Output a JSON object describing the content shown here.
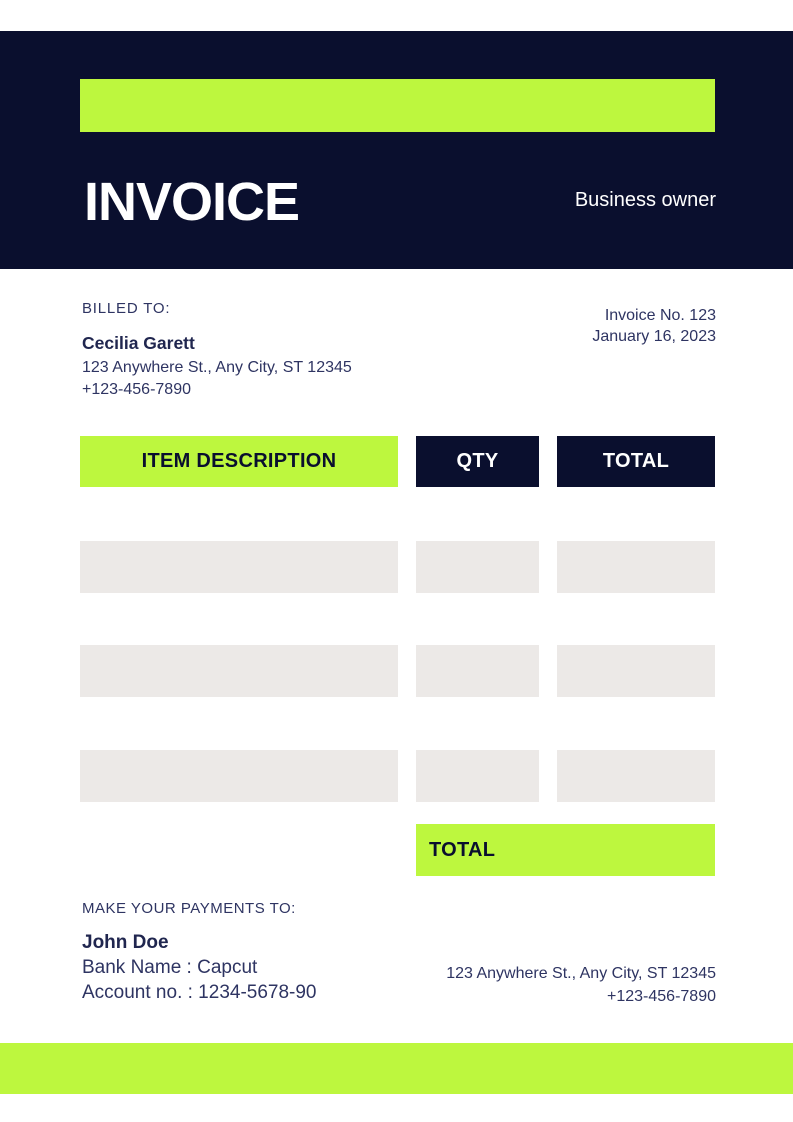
{
  "colors": {
    "navy": "#0a0f2e",
    "lime": "#bdf73e",
    "row_gray": "#ece9e7",
    "text": "#2e3462",
    "bold_text": "#20264f"
  },
  "header": {
    "title": "INVOICE",
    "owner": "Business owner"
  },
  "billing": {
    "label": "BILLED TO:",
    "name": "Cecilia Garett",
    "address": "123 Anywhere St., Any City, ST 12345",
    "phone": "+123-456-7890"
  },
  "meta": {
    "invoice_no": "Invoice No. 123",
    "date": "January 16, 2023"
  },
  "table": {
    "headers": [
      "ITEM DESCRIPTION",
      "QTY",
      "TOTAL"
    ],
    "rows": [
      [
        "",
        "",
        ""
      ],
      [
        "",
        "",
        ""
      ],
      [
        "",
        "",
        ""
      ]
    ],
    "total_label": "TOTAL"
  },
  "payment": {
    "label": "MAKE YOUR PAYMENTS TO:",
    "name": "John Doe",
    "bank": "Bank Name : Capcut",
    "account": "Account no. : 1234-5678-90"
  },
  "contact": {
    "address": "123 Anywhere St., Any City, ST 12345",
    "phone": "+123-456-7890"
  }
}
